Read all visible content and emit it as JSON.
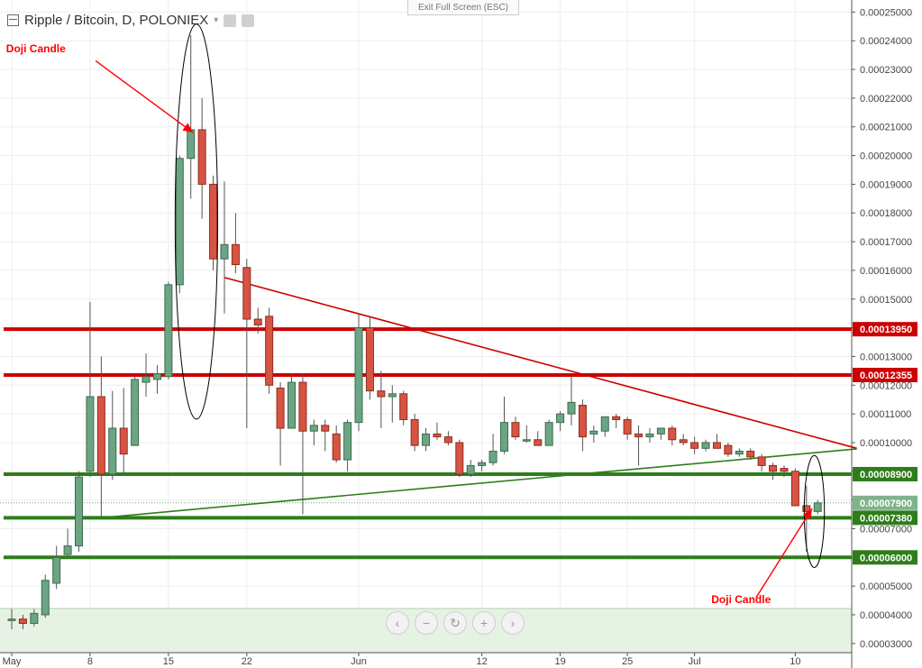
{
  "header": {
    "symbol": "Ripple / Bitcoin, D, POLONIEX"
  },
  "toolbar": {
    "exit_fullscreen": "Exit Full Screen (ESC)"
  },
  "zoom_controls": [
    "‹",
    "−",
    "↻",
    "+",
    "›"
  ],
  "colors": {
    "up": "#6ba583",
    "down": "#d75442",
    "resistance": "#cc0000",
    "support": "#2e7d1b",
    "annotation": "#ff0000",
    "band": "#e0efdc"
  },
  "chart_data": {
    "type": "candlestick",
    "x_ticks": [
      {
        "label": "May",
        "day": 0
      },
      {
        "label": "8",
        "day": 7
      },
      {
        "label": "15",
        "day": 14
      },
      {
        "label": "22",
        "day": 21
      },
      {
        "label": "Jun",
        "day": 31
      },
      {
        "label": "12",
        "day": 42
      },
      {
        "label": "19",
        "day": 49
      },
      {
        "label": "25",
        "day": 55
      },
      {
        "label": "Jul",
        "day": 61
      },
      {
        "label": "10",
        "day": 70
      }
    ],
    "y_ticks": [
      "0.00003000",
      "0.00004000",
      "0.00005000",
      "0.00006000",
      "0.00007000",
      "0.00008000",
      "0.00009000",
      "0.00010000",
      "0.00011000",
      "0.00012000",
      "0.00013000",
      "0.00014000",
      "0.00015000",
      "0.00016000",
      "0.00017000",
      "0.00018000",
      "0.00019000",
      "0.00020000",
      "0.00021000",
      "0.00022000",
      "0.00023000",
      "0.00024000",
      "0.00025000"
    ],
    "ylim": [
      2.68e-05,
      0.0002542
    ],
    "candles": [
      {
        "o": 3.8e-05,
        "h": 4.2e-05,
        "l": 3.5e-05,
        "c": 3.85e-05
      },
      {
        "o": 3.85e-05,
        "h": 4e-05,
        "l": 3.5e-05,
        "c": 3.7e-05
      },
      {
        "o": 3.7e-05,
        "h": 4.2e-05,
        "l": 3.6e-05,
        "c": 4.05e-05
      },
      {
        "o": 4e-05,
        "h": 5.4e-05,
        "l": 3.9e-05,
        "c": 5.2e-05
      },
      {
        "o": 5.1e-05,
        "h": 6.4e-05,
        "l": 4.9e-05,
        "c": 6e-05
      },
      {
        "o": 6.1e-05,
        "h": 7e-05,
        "l": 6e-05,
        "c": 6.4e-05
      },
      {
        "o": 6.4e-05,
        "h": 9e-05,
        "l": 6.2e-05,
        "c": 8.8e-05
      },
      {
        "o": 9e-05,
        "h": 0.000149,
        "l": 8.8e-05,
        "c": 0.000116
      },
      {
        "o": 0.000116,
        "h": 0.00013,
        "l": 7.4e-05,
        "c": 8.9e-05
      },
      {
        "o": 8.9e-05,
        "h": 0.000118,
        "l": 8.7e-05,
        "c": 0.000105
      },
      {
        "o": 0.000105,
        "h": 0.000119,
        "l": 8.9e-05,
        "c": 9.6e-05
      },
      {
        "o": 9.9e-05,
        "h": 0.000123,
        "l": 9.9e-05,
        "c": 0.000122
      },
      {
        "o": 0.000121,
        "h": 0.000131,
        "l": 0.000116,
        "c": 0.000123
      },
      {
        "o": 0.000122,
        "h": 0.000127,
        "l": 0.000117,
        "c": 0.000124
      },
      {
        "o": 0.000123,
        "h": 0.000156,
        "l": 0.000122,
        "c": 0.000155
      },
      {
        "o": 0.000155,
        "h": 0.0002,
        "l": 0.000152,
        "c": 0.000199
      },
      {
        "o": 0.000199,
        "h": 0.000242,
        "l": 0.000185,
        "c": 0.000209
      },
      {
        "o": 0.000209,
        "h": 0.00022,
        "l": 0.000178,
        "c": 0.00019
      },
      {
        "o": 0.00019,
        "h": 0.000193,
        "l": 0.00016,
        "c": 0.000164
      },
      {
        "o": 0.000164,
        "h": 0.000191,
        "l": 0.000145,
        "c": 0.000169
      },
      {
        "o": 0.000169,
        "h": 0.00018,
        "l": 0.000159,
        "c": 0.000162
      },
      {
        "o": 0.000161,
        "h": 0.000164,
        "l": 0.000105,
        "c": 0.000143
      },
      {
        "o": 0.000143,
        "h": 0.000147,
        "l": 0.000138,
        "c": 0.000141
      },
      {
        "o": 0.000144,
        "h": 0.000147,
        "l": 0.000117,
        "c": 0.00012
      },
      {
        "o": 0.000119,
        "h": 0.000121,
        "l": 9.2e-05,
        "c": 0.000105
      },
      {
        "o": 0.000105,
        "h": 0.000124,
        "l": 0.000105,
        "c": 0.000121
      },
      {
        "o": 0.000121,
        "h": 0.000124,
        "l": 7.5e-05,
        "c": 0.000104
      },
      {
        "o": 0.000104,
        "h": 0.000108,
        "l": 9.9e-05,
        "c": 0.000106
      },
      {
        "o": 0.000106,
        "h": 0.000108,
        "l": 9.7e-05,
        "c": 0.000104
      },
      {
        "o": 0.000103,
        "h": 0.000106,
        "l": 9.3e-05,
        "c": 9.4e-05
      },
      {
        "o": 9.4e-05,
        "h": 0.000108,
        "l": 9e-05,
        "c": 0.000107
      },
      {
        "o": 0.000107,
        "h": 0.000145,
        "l": 0.000104,
        "c": 0.00014
      },
      {
        "o": 0.00014,
        "h": 0.000144,
        "l": 0.000115,
        "c": 0.000118
      },
      {
        "o": 0.000118,
        "h": 0.000125,
        "l": 0.000105,
        "c": 0.000116
      },
      {
        "o": 0.000116,
        "h": 0.00012,
        "l": 0.000107,
        "c": 0.000117
      },
      {
        "o": 0.000117,
        "h": 0.000118,
        "l": 0.000106,
        "c": 0.000108
      },
      {
        "o": 0.000108,
        "h": 0.00011,
        "l": 9.7e-05,
        "c": 9.9e-05
      },
      {
        "o": 9.9e-05,
        "h": 0.000105,
        "l": 9.7e-05,
        "c": 0.000103
      },
      {
        "o": 0.000103,
        "h": 0.000107,
        "l": 0.000101,
        "c": 0.000102
      },
      {
        "o": 0.000102,
        "h": 0.000104,
        "l": 9.9e-05,
        "c": 0.0001
      },
      {
        "o": 0.0001,
        "h": 0.000101,
        "l": 8.8e-05,
        "c": 8.9e-05
      },
      {
        "o": 8.9e-05,
        "h": 9.4e-05,
        "l": 8.8e-05,
        "c": 9.2e-05
      },
      {
        "o": 9.2e-05,
        "h": 9.4e-05,
        "l": 9e-05,
        "c": 9.3e-05
      },
      {
        "o": 9.3e-05,
        "h": 0.000103,
        "l": 9.2e-05,
        "c": 9.7e-05
      },
      {
        "o": 9.7e-05,
        "h": 0.000116,
        "l": 9.6e-05,
        "c": 0.000107
      },
      {
        "o": 0.000107,
        "h": 0.000109,
        "l": 0.000101,
        "c": 0.000102
      },
      {
        "o": 0.000101,
        "h": 0.000106,
        "l": 0.0001,
        "c": 0.000101
      },
      {
        "o": 0.000101,
        "h": 0.000104,
        "l": 9.9e-05,
        "c": 9.9e-05
      },
      {
        "o": 9.9e-05,
        "h": 0.000108,
        "l": 9.9e-05,
        "c": 0.000107
      },
      {
        "o": 0.000107,
        "h": 0.000111,
        "l": 0.000104,
        "c": 0.00011
      },
      {
        "o": 0.00011,
        "h": 0.000123,
        "l": 0.000106,
        "c": 0.000114
      },
      {
        "o": 0.000113,
        "h": 0.000115,
        "l": 9.7e-05,
        "c": 0.000102
      },
      {
        "o": 0.000103,
        "h": 0.000106,
        "l": 0.0001,
        "c": 0.000104
      },
      {
        "o": 0.000104,
        "h": 0.000109,
        "l": 0.000102,
        "c": 0.000109
      },
      {
        "o": 0.000109,
        "h": 0.00011,
        "l": 0.000105,
        "c": 0.000108
      },
      {
        "o": 0.000108,
        "h": 0.000109,
        "l": 0.000101,
        "c": 0.000103
      },
      {
        "o": 0.000103,
        "h": 0.000106,
        "l": 9.2e-05,
        "c": 0.000102
      },
      {
        "o": 0.000102,
        "h": 0.000105,
        "l": 0.0001,
        "c": 0.000103
      },
      {
        "o": 0.000103,
        "h": 0.000105,
        "l": 0.000101,
        "c": 0.000105
      },
      {
        "o": 0.000105,
        "h": 0.000106,
        "l": 9.9e-05,
        "c": 0.000101
      },
      {
        "o": 0.000101,
        "h": 0.000103,
        "l": 9.9e-05,
        "c": 0.0001
      },
      {
        "o": 0.0001,
        "h": 0.000102,
        "l": 9.6e-05,
        "c": 9.8e-05
      },
      {
        "o": 9.8e-05,
        "h": 0.000101,
        "l": 9.7e-05,
        "c": 0.0001
      },
      {
        "o": 0.0001,
        "h": 0.000103,
        "l": 9.8e-05,
        "c": 9.8e-05
      },
      {
        "o": 9.9e-05,
        "h": 0.0001,
        "l": 9.5e-05,
        "c": 9.6e-05
      },
      {
        "o": 9.6e-05,
        "h": 9.8e-05,
        "l": 9.5e-05,
        "c": 9.7e-05
      },
      {
        "o": 9.7e-05,
        "h": 9.8e-05,
        "l": 9.4e-05,
        "c": 9.5e-05
      },
      {
        "o": 9.5e-05,
        "h": 9.6e-05,
        "l": 9e-05,
        "c": 9.2e-05
      },
      {
        "o": 9.2e-05,
        "h": 9.3e-05,
        "l": 8.7e-05,
        "c": 9e-05
      },
      {
        "o": 9.1e-05,
        "h": 9.2e-05,
        "l": 8.8e-05,
        "c": 9e-05
      },
      {
        "o": 9e-05,
        "h": 9.1e-05,
        "l": 7.8e-05,
        "c": 7.8e-05
      },
      {
        "o": 7.8e-05,
        "h": 8.5e-05,
        "l": 6.2e-05,
        "c": 7.6e-05
      },
      {
        "o": 7.6e-05,
        "h": 8e-05,
        "l": 7.5e-05,
        "c": 7.9e-05
      }
    ],
    "horizontal_levels": [
      {
        "value": 0.0001395,
        "label": "0.00013950",
        "kind": "resistance"
      },
      {
        "value": 0.00012355,
        "label": "0.00012355",
        "kind": "resistance"
      },
      {
        "value": 8.9e-05,
        "label": "0.00008900",
        "kind": "support"
      },
      {
        "value": 7.38e-05,
        "label": "0.00007380",
        "kind": "support"
      },
      {
        "value": 6e-05,
        "label": "0.00006000",
        "kind": "support"
      }
    ],
    "last_price": {
      "value": 7.9e-05,
      "label": "0.00007900"
    },
    "trendlines": [
      {
        "kind": "descending",
        "from": {
          "day": 19,
          "y": 0.0001575
        },
        "to": {
          "day": 75.5,
          "y": 9.8e-05
        }
      },
      {
        "kind": "ascending",
        "from": {
          "day": 8,
          "y": 7.38e-05
        },
        "to": {
          "day": 75.5,
          "y": 9.78e-05
        }
      }
    ],
    "annotations": [
      {
        "text": "Doji Candle",
        "text_at": {
          "day": -0.5,
          "y": 0.000236
        },
        "arrow_from": {
          "day": 7.5,
          "y": 0.000233
        },
        "arrow_to": {
          "day": 16.2,
          "y": 0.000208
        }
      },
      {
        "text": "Doji Candle",
        "text_at": {
          "day": 62.5,
          "y": 4.4e-05
        },
        "arrow_from": {
          "day": 66.5,
          "y": 4.6e-05
        },
        "arrow_to": {
          "day": 71.5,
          "y": 7.7e-05
        }
      }
    ],
    "ellipses": [
      {
        "cx_day": 16.5,
        "cy": 0.000177,
        "rx_days": 1.9,
        "ry": 6.88e-05
      },
      {
        "cx_day": 71.7,
        "cy": 7.6e-05,
        "rx_days": 0.9,
        "ry": 1.95e-05
      }
    ]
  }
}
